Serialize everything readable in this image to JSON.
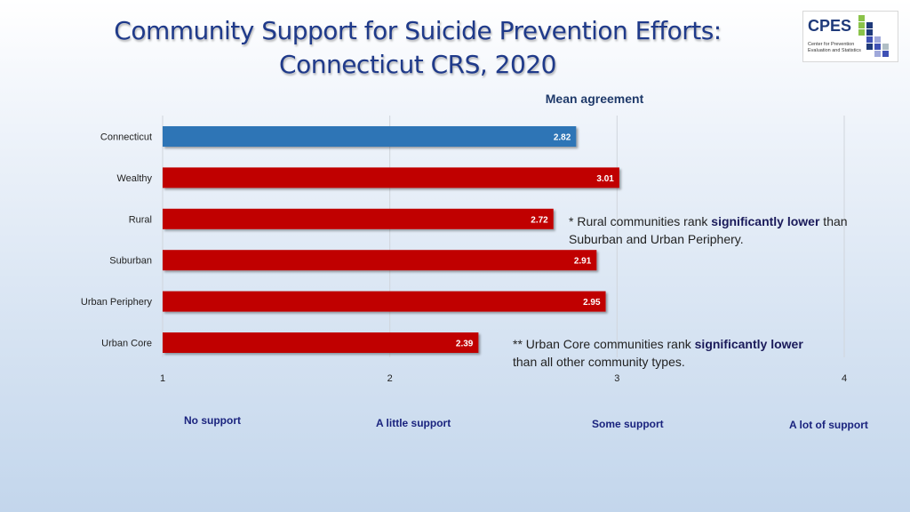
{
  "header": {
    "title_line1": "Community Support for Suicide Prevention Efforts:",
    "title_line2": "Connecticut CRS, 2020"
  },
  "logo": {
    "name": "CPES",
    "subtitle_line1": "Center for Prevention",
    "subtitle_line2": "Evaluation and Statistics",
    "colors": [
      "#8bc34a",
      "#1f3a7a",
      "#9fa8da",
      "#3f51b5",
      "#b0bec5"
    ]
  },
  "chart_data": {
    "type": "bar",
    "orientation": "horizontal",
    "title": "Mean agreement",
    "categories": [
      "Connecticut",
      "Wealthy",
      "Rural",
      "Suburban",
      "Urban Periphery",
      "Urban Core"
    ],
    "values": [
      2.82,
      3.01,
      2.72,
      2.91,
      2.95,
      2.39
    ],
    "value_labels": [
      "2.82",
      "3.01",
      "2.72",
      "2.91",
      "2.95",
      "2.39"
    ],
    "bar_colors": [
      "#2e75b6",
      "#c00000",
      "#c00000",
      "#c00000",
      "#c00000",
      "#c00000"
    ],
    "xlim": [
      1,
      4
    ],
    "xticks": [
      "1",
      "2",
      "3",
      "4"
    ],
    "grid": true
  },
  "scale_labels": [
    "No support",
    "A little support",
    "Some support",
    "A lot of support"
  ],
  "notes": {
    "rural": {
      "prefix": "* Rural communities rank ",
      "bold": "significantly lower",
      "suffix": " than",
      "line2": "Suburban and Urban Periphery."
    },
    "urban_core": {
      "prefix": "** Urban Core communities rank ",
      "bold": "significantly lower",
      "line2": "than all other community types."
    }
  }
}
